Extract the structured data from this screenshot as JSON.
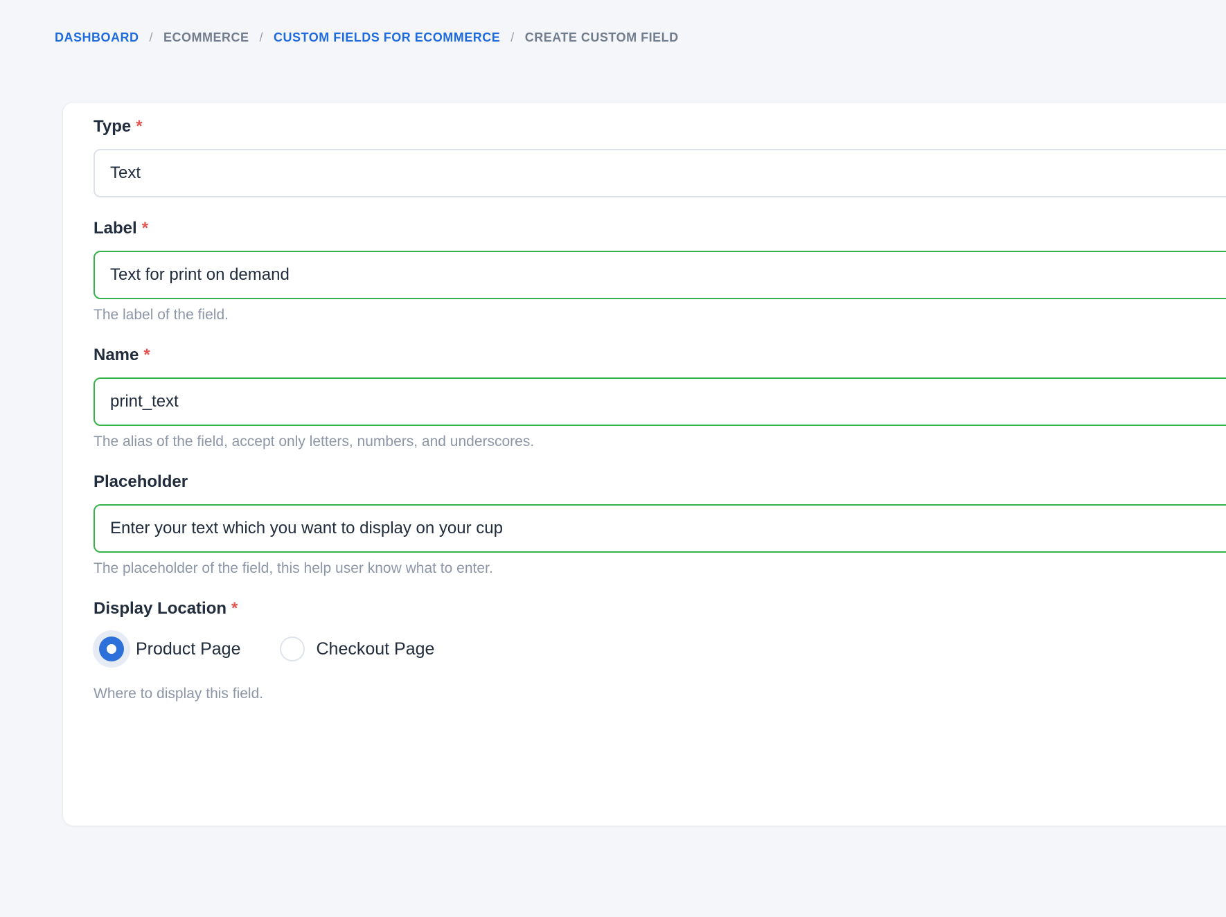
{
  "breadcrumb": {
    "separator": "/",
    "items": [
      {
        "label": "DASHBOARD",
        "link": true
      },
      {
        "label": "ECOMMERCE",
        "link": false
      },
      {
        "label": "CUSTOM FIELDS FOR ECOMMERCE",
        "link": true
      },
      {
        "label": "CREATE CUSTOM FIELD",
        "link": false
      }
    ]
  },
  "form": {
    "required_marker": "*",
    "fields": {
      "type": {
        "label": "Type",
        "value": "Text"
      },
      "label": {
        "label": "Label",
        "value": "Text for print on demand",
        "help": "The label of the field."
      },
      "name": {
        "label": "Name",
        "value": "print_text",
        "help": "The alias of the field, accept only letters, numbers, and underscores."
      },
      "placeholder": {
        "label": "Placeholder",
        "value": "Enter your text which you want to display on your cup",
        "help": "The placeholder of the field, this help user know what to enter."
      },
      "display_location": {
        "label": "Display Location",
        "help": "Where to display this field.",
        "options": [
          {
            "label": "Product Page",
            "selected": true
          },
          {
            "label": "Checkout Page",
            "selected": false
          }
        ]
      }
    }
  },
  "colors": {
    "page_background": "#f4f6f9",
    "link_blue": "#1e6bdd",
    "success_green": "#35b24a",
    "radio_blue": "#2e70d9",
    "required_red": "#e25650",
    "help_gray": "#8c96a7"
  }
}
